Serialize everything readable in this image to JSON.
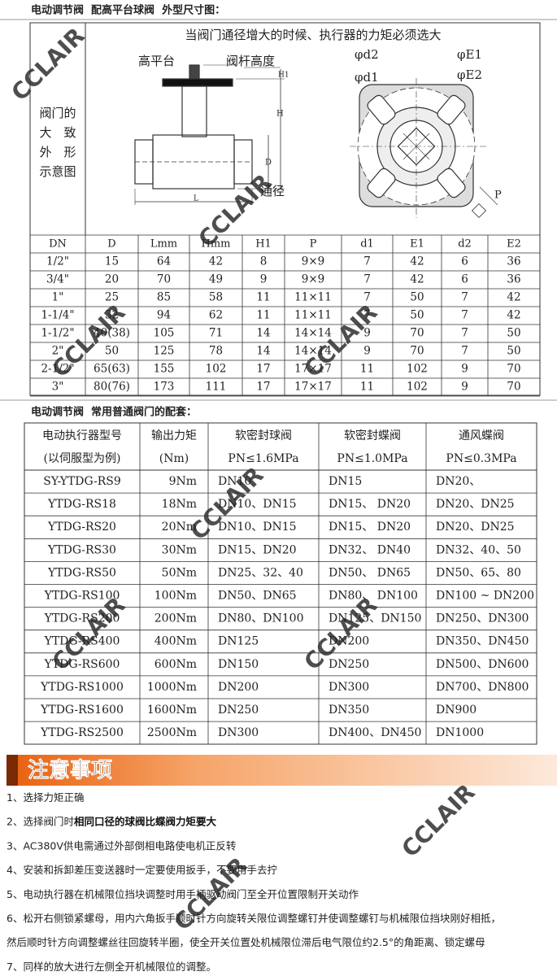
{
  "header1": "电动调节阀  配高平台球阀  外型尺寸图：",
  "diagram": {
    "side_label": [
      "阀门的",
      "大　致",
      "外　形",
      "示意图"
    ],
    "caption": "当阀门通径增大的时候、执行器的力矩必须选大",
    "labels": {
      "high_platform": "高平台",
      "stem_height": "阀杆高度",
      "bore": "通径",
      "H1": "H1",
      "H": "H",
      "D": "D",
      "L": "L",
      "d2": "φd2",
      "d1": "φd1",
      "E1": "φE1",
      "E2": "φE2",
      "P": "P"
    }
  },
  "dim_table": {
    "columns": [
      "DN",
      "D",
      "Lmm",
      "Hmm",
      "H1",
      "P",
      "d1",
      "E1",
      "d2",
      "E2"
    ],
    "rows": [
      [
        "1/2\"",
        "15",
        "64",
        "42",
        "8",
        "9×9",
        "7",
        "42",
        "6",
        "36"
      ],
      [
        "3/4\"",
        "20",
        "70",
        "49",
        "9",
        "9×9",
        "7",
        "42",
        "6",
        "36"
      ],
      [
        "1\"",
        "25",
        "85",
        "58",
        "11",
        "11×11",
        "7",
        "50",
        "7",
        "42"
      ],
      [
        "1-1/4\"",
        "32",
        "94",
        "62",
        "11",
        "11×11",
        "7",
        "50",
        "7",
        "42"
      ],
      [
        "1-1/2\"",
        "40(38)",
        "105",
        "71",
        "14",
        "14×14",
        "9",
        "70",
        "7",
        "50"
      ],
      [
        "2\"",
        "50",
        "125",
        "78",
        "14",
        "14×14",
        "9",
        "70",
        "7",
        "50"
      ],
      [
        "2-1/2\"",
        "65(63)",
        "155",
        "102",
        "17",
        "17×17",
        "11",
        "102",
        "9",
        "70"
      ],
      [
        "3\"",
        "80(76)",
        "173",
        "111",
        "17",
        "17×17",
        "11",
        "102",
        "9",
        "70"
      ]
    ]
  },
  "header2": "电动调节阀  常用普通阀门的配套：",
  "match_table": {
    "columns": [
      [
        "电动执行器型号",
        "(以伺服型为例)"
      ],
      [
        "输出力矩",
        "(Nm)"
      ],
      [
        "软密封球阀",
        "PN≤1.6MPa"
      ],
      [
        "软密封蝶阀",
        "PN≤1.0MPa"
      ],
      [
        "通风蝶阀",
        "PN≤0.3MPa"
      ]
    ],
    "rows": [
      [
        "SY-YTDG-RS9",
        "9Nm",
        "DN10",
        "DN15",
        "DN20、"
      ],
      [
        "YTDG-RS18",
        "18Nm",
        "DN10、DN15",
        "DN15、 DN20",
        "DN20、DN25"
      ],
      [
        "YTDG-RS20",
        "20Nm",
        "DN10、DN15",
        "DN15、 DN20",
        "DN20、DN25"
      ],
      [
        "YTDG-RS30",
        "30Nm",
        "DN15、DN20",
        "DN32、 DN40",
        "DN32、40、50"
      ],
      [
        "YTDG-RS50",
        "50Nm",
        "DN25、32、40",
        "DN50、 DN65",
        "DN50、65、80"
      ],
      [
        "YTDG-RS100",
        "100Nm",
        "DN50、DN65",
        "DN80、 DN100",
        "DN100 ~ DN200"
      ],
      [
        "YTDG-RS200",
        "200Nm",
        "DN80、DN100",
        "DN125、DN150",
        "DN250、DN300"
      ],
      [
        "YTDG-RS400",
        "400Nm",
        "DN125",
        "DN200",
        "DN350、DN450"
      ],
      [
        "YTDG-RS600",
        "600Nm",
        "DN150",
        "DN250",
        "DN500、DN600"
      ],
      [
        "YTDG-RS1000",
        "1000Nm",
        "DN200",
        "DN300",
        "DN700、DN800"
      ],
      [
        "YTDG-RS1600",
        "1600Nm",
        "DN250",
        "DN350",
        "DN900"
      ],
      [
        "YTDG-RS2500",
        "2500Nm",
        "DN300",
        "DN400、DN450",
        "DN1000"
      ]
    ]
  },
  "notes_title": "注意事项",
  "notes": [
    {
      "text": "1、选择力矩正确"
    },
    {
      "text": "2、选择阀门时",
      "bold": "相同口径的球阀比蝶阀力矩要大"
    },
    {
      "text": "3、AC380V供电需通过外部倒相电路使电机正反转"
    },
    {
      "text": "4、安装和拆卸差压变送器时一定要使用扳手，不要用手去拧"
    },
    {
      "text": "5、电动执行器在机械限位挡块调整时用手柄驱动阀门至全开位置限制开关动作"
    },
    {
      "text": "6、松开右侧锁紧螺母，用内六角扳手顺时针方向旋转关限位调整螺钉并使调整螺钉与机械限位挡块刚好相抵，"
    },
    {
      "text": "然后顺时针方向调整螺丝往回旋转半圈，使全开关位置处机械限位滞后电气限位约2.5°的角距离、锁定螺母"
    },
    {
      "text": "7、同样的放大进行左侧全开机械限位的调整。"
    }
  ],
  "watermark": "CCLAIR"
}
